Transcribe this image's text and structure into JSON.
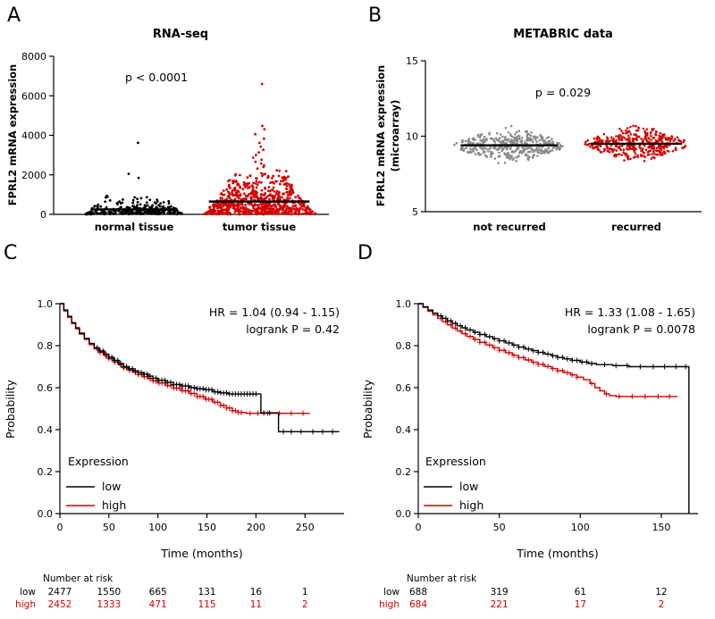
{
  "colors": {
    "red": "#d40000",
    "black": "#000000",
    "gray": "#8a8a8a"
  },
  "panels": {
    "A": {
      "letter": "A",
      "title": "RNA-seq",
      "p_label": "p < 0.0001",
      "ylabel": "FPRL2 mRNA expression",
      "categories": [
        "normal tissue",
        "tumor tissue"
      ]
    },
    "B": {
      "letter": "B",
      "title": "METABRIC data",
      "p_label": "p = 0.029",
      "ylabel_line1": "FPRL2 mRNA expression",
      "ylabel_line2": "(microarray)",
      "categories": [
        "not recurred",
        "recurred"
      ]
    },
    "C": {
      "letter": "C",
      "hr_label": "HR = 1.04 (0.94 - 1.15)",
      "logrank_label": "logrank P = 0.42",
      "ylabel": "Probability",
      "xlabel": "Time (months)",
      "legend_title": "Expression",
      "legend_low": "low",
      "legend_high": "high",
      "risk_header": "Number at risk",
      "risk_row_low": "low",
      "risk_row_high": "high"
    },
    "D": {
      "letter": "D",
      "hr_label": "HR = 1.33 (1.08 - 1.65)",
      "logrank_label": "logrank P = 0.0078",
      "ylabel": "Probability",
      "xlabel": "Time (months)",
      "legend_title": "Expression",
      "legend_low": "low",
      "legend_high": "high",
      "risk_header": "Number at risk",
      "risk_row_low": "low",
      "risk_row_high": "high"
    }
  },
  "chart_data": [
    {
      "id": "A",
      "type": "scatter",
      "title": "RNA-seq",
      "ylabel": "FPRL2 mRNA expression",
      "annotation": "p < 0.0001",
      "ylim": [
        0,
        8000
      ],
      "yticks": [
        0,
        2000,
        4000,
        6000,
        8000
      ],
      "categories": [
        "normal tissue",
        "tumor tissue"
      ],
      "groups": [
        {
          "label": "normal tissue",
          "color": "#000000",
          "n": 280,
          "dist": "exp",
          "scale": 230,
          "cap": 1750,
          "outliers": [
            1850,
            2050,
            3620
          ],
          "median": 250
        },
        {
          "label": "tumor tissue",
          "color": "#d40000",
          "n": 700,
          "dist": "exp",
          "scale": 750,
          "cap": 2250,
          "outliers": [
            2320,
            2400,
            2480,
            2570,
            2660,
            2760,
            2870,
            3000,
            3130,
            3270,
            3430,
            3620,
            3830,
            4060,
            4310,
            4480,
            6600
          ],
          "median": 650
        }
      ]
    },
    {
      "id": "B",
      "type": "scatter",
      "title": "METABRIC data",
      "ylabel": "FPRL2 mRNA expression (microarray)",
      "annotation": "p = 0.029",
      "ylim": [
        5,
        15
      ],
      "yticks": [
        5,
        10,
        15
      ],
      "categories": [
        "not recurred",
        "recurred"
      ],
      "groups": [
        {
          "label": "not recurred",
          "color": "#8a8a8a",
          "n": 430,
          "dist": "normal",
          "mean": 9.4,
          "sd": 0.45,
          "min": 8.1,
          "max": 10.9,
          "median": 9.4
        },
        {
          "label": "recurred",
          "color": "#d40000",
          "n": 390,
          "dist": "normal",
          "mean": 9.5,
          "sd": 0.45,
          "min": 8.2,
          "max": 10.9,
          "median": 9.5
        }
      ]
    },
    {
      "id": "C",
      "type": "km",
      "xlabel": "Time (months)",
      "ylabel": "Probability",
      "hr": "HR = 1.04 (0.94 - 1.15)",
      "logrank": "logrank P = 0.42",
      "xlim": [
        0,
        290
      ],
      "xticks": [
        0,
        50,
        100,
        150,
        200,
        250
      ],
      "yticks": [
        "0.0",
        "0.2",
        "0.4",
        "0.6",
        "0.8",
        "1.0"
      ],
      "series": [
        {
          "name": "low",
          "color": "#000000",
          "points": [
            [
              0,
              1.0
            ],
            [
              4,
              0.97
            ],
            [
              8,
              0.94
            ],
            [
              12,
              0.91
            ],
            [
              16,
              0.885
            ],
            [
              20,
              0.86
            ],
            [
              25,
              0.835
            ],
            [
              30,
              0.81
            ],
            [
              35,
              0.79
            ],
            [
              40,
              0.775
            ],
            [
              45,
              0.76
            ],
            [
              50,
              0.745
            ],
            [
              55,
              0.73
            ],
            [
              60,
              0.715
            ],
            [
              65,
              0.7
            ],
            [
              70,
              0.69
            ],
            [
              75,
              0.68
            ],
            [
              80,
              0.672
            ],
            [
              85,
              0.664
            ],
            [
              90,
              0.655
            ],
            [
              95,
              0.645
            ],
            [
              100,
              0.635
            ],
            [
              108,
              0.625
            ],
            [
              116,
              0.615
            ],
            [
              124,
              0.608
            ],
            [
              132,
              0.6
            ],
            [
              140,
              0.595
            ],
            [
              148,
              0.59
            ],
            [
              156,
              0.58
            ],
            [
              164,
              0.575
            ],
            [
              172,
              0.57
            ],
            [
              185,
              0.57
            ],
            [
              200,
              0.57
            ],
            [
              205,
              0.48
            ],
            [
              220,
              0.48
            ],
            [
              223,
              0.39
            ],
            [
              285,
              0.39
            ]
          ],
          "censor_ranges": [
            [
              38,
              200,
              3
            ]
          ],
          "censor_extra": [
            208,
            214,
            228,
            236,
            246,
            258,
            268,
            278
          ]
        },
        {
          "name": "high",
          "color": "#d40000",
          "points": [
            [
              0,
              1.0
            ],
            [
              4,
              0.965
            ],
            [
              8,
              0.935
            ],
            [
              12,
              0.905
            ],
            [
              16,
              0.88
            ],
            [
              20,
              0.855
            ],
            [
              25,
              0.83
            ],
            [
              30,
              0.805
            ],
            [
              35,
              0.785
            ],
            [
              40,
              0.768
            ],
            [
              45,
              0.752
            ],
            [
              50,
              0.738
            ],
            [
              55,
              0.722
            ],
            [
              60,
              0.708
            ],
            [
              65,
              0.695
            ],
            [
              70,
              0.683
            ],
            [
              75,
              0.672
            ],
            [
              80,
              0.662
            ],
            [
              85,
              0.652
            ],
            [
              90,
              0.642
            ],
            [
              95,
              0.632
            ],
            [
              100,
              0.622
            ],
            [
              108,
              0.61
            ],
            [
              116,
              0.598
            ],
            [
              124,
              0.585
            ],
            [
              132,
              0.572
            ],
            [
              140,
              0.558
            ],
            [
              148,
              0.545
            ],
            [
              156,
              0.53
            ],
            [
              164,
              0.515
            ],
            [
              170,
              0.503
            ],
            [
              176,
              0.49
            ],
            [
              182,
              0.482
            ],
            [
              190,
              0.478
            ],
            [
              255,
              0.478
            ]
          ],
          "censor_ranges": [
            [
              38,
              186,
              3
            ]
          ],
          "censor_extra": [
            194,
            202,
            212,
            224,
            236,
            248
          ]
        }
      ],
      "risk": {
        "times": [
          0,
          50,
          100,
          150,
          200,
          250
        ],
        "rows": [
          {
            "name": "low",
            "color": "#000000",
            "values": [
              2477,
              1550,
              665,
              131,
              16,
              1
            ]
          },
          {
            "name": "high",
            "color": "#d40000",
            "values": [
              2452,
              1333,
              471,
              115,
              11,
              2
            ]
          }
        ]
      }
    },
    {
      "id": "D",
      "type": "km",
      "xlabel": "Time (months)",
      "ylabel": "Probability",
      "hr": "HR = 1.33 (1.08 - 1.65)",
      "logrank": "logrank P = 0.0078",
      "xlim": [
        0,
        172
      ],
      "xticks": [
        0,
        50,
        100,
        150
      ],
      "yticks": [
        "0.0",
        "0.2",
        "0.4",
        "0.6",
        "0.8",
        "1.0"
      ],
      "series": [
        {
          "name": "low",
          "color": "#000000",
          "points": [
            [
              0,
              1.0
            ],
            [
              3,
              0.985
            ],
            [
              6,
              0.97
            ],
            [
              9,
              0.955
            ],
            [
              12,
              0.942
            ],
            [
              15,
              0.93
            ],
            [
              18,
              0.918
            ],
            [
              21,
              0.906
            ],
            [
              24,
              0.895
            ],
            [
              27,
              0.885
            ],
            [
              30,
              0.875
            ],
            [
              34,
              0.864
            ],
            [
              38,
              0.853
            ],
            [
              42,
              0.843
            ],
            [
              46,
              0.833
            ],
            [
              50,
              0.823
            ],
            [
              54,
              0.813
            ],
            [
              58,
              0.803
            ],
            [
              62,
              0.793
            ],
            [
              66,
              0.784
            ],
            [
              70,
              0.776
            ],
            [
              74,
              0.768
            ],
            [
              78,
              0.76
            ],
            [
              82,
              0.752
            ],
            [
              86,
              0.744
            ],
            [
              90,
              0.737
            ],
            [
              95,
              0.73
            ],
            [
              100,
              0.722
            ],
            [
              105,
              0.715
            ],
            [
              110,
              0.71
            ],
            [
              120,
              0.705
            ],
            [
              130,
              0.7
            ],
            [
              167,
              0.7
            ],
            [
              167,
              0.0
            ]
          ],
          "censor_ranges": [
            [
              14,
              108,
              3
            ]
          ],
          "censor_extra": [
            115,
            122,
            129,
            137,
            145,
            152,
            159,
            165
          ]
        },
        {
          "name": "high",
          "color": "#d40000",
          "points": [
            [
              0,
              1.0
            ],
            [
              3,
              0.982
            ],
            [
              6,
              0.964
            ],
            [
              9,
              0.947
            ],
            [
              12,
              0.93
            ],
            [
              15,
              0.914
            ],
            [
              18,
              0.899
            ],
            [
              21,
              0.884
            ],
            [
              24,
              0.87
            ],
            [
              27,
              0.857
            ],
            [
              30,
              0.844
            ],
            [
              34,
              0.83
            ],
            [
              38,
              0.816
            ],
            [
              42,
              0.803
            ],
            [
              46,
              0.79
            ],
            [
              50,
              0.778
            ],
            [
              54,
              0.766
            ],
            [
              58,
              0.754
            ],
            [
              62,
              0.743
            ],
            [
              66,
              0.732
            ],
            [
              70,
              0.721
            ],
            [
              74,
              0.711
            ],
            [
              78,
              0.701
            ],
            [
              82,
              0.691
            ],
            [
              86,
              0.681
            ],
            [
              90,
              0.671
            ],
            [
              94,
              0.661
            ],
            [
              98,
              0.65
            ],
            [
              102,
              0.638
            ],
            [
              106,
              0.62
            ],
            [
              109,
              0.6
            ],
            [
              112,
              0.585
            ],
            [
              115,
              0.57
            ],
            [
              118,
              0.562
            ],
            [
              122,
              0.558
            ],
            [
              160,
              0.558
            ]
          ],
          "censor_ranges": [
            [
              14,
              100,
              3
            ]
          ],
          "censor_extra": [
            107,
            116,
            124,
            132,
            140,
            148,
            155
          ]
        }
      ],
      "risk": {
        "times": [
          0,
          50,
          100,
          150
        ],
        "rows": [
          {
            "name": "low",
            "color": "#000000",
            "values": [
              688,
              319,
              61,
              12
            ]
          },
          {
            "name": "high",
            "color": "#d40000",
            "values": [
              684,
              221,
              17,
              2
            ]
          }
        ]
      }
    }
  ]
}
